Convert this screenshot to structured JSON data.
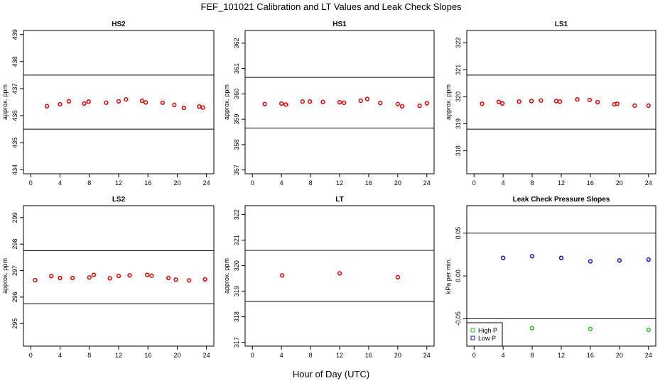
{
  "figure": {
    "title": "FEF_101021  Calibration and LT Values and Leak Check Slopes",
    "xlabel": "Hour of Day (UTC)"
  },
  "chart_data": [
    {
      "type": "scatter",
      "title": "HS2",
      "ylabel": "approx. ppm",
      "xlim": [
        -1,
        25
      ],
      "ylim": [
        433.85,
        439.15
      ],
      "xticks": [
        "0",
        "4",
        "8",
        "12",
        "16",
        "20",
        "24"
      ],
      "yticks": [
        434,
        435,
        436,
        437,
        438,
        439
      ],
      "ref_lines": [
        435.5,
        437.5
      ],
      "marker_color": "#dd0000",
      "series": [
        {
          "x": [
            2.2,
            4.0,
            5.2,
            7.3,
            7.9,
            10.3,
            12.0,
            13.0,
            15.2,
            15.7,
            18.0,
            19.6,
            20.9,
            23.0,
            23.5
          ],
          "y": [
            436.35,
            436.42,
            436.53,
            436.45,
            436.52,
            436.48,
            436.53,
            436.6,
            436.55,
            436.49,
            436.48,
            436.4,
            436.29,
            436.34,
            436.3
          ]
        }
      ]
    },
    {
      "type": "scatter",
      "title": "HS1",
      "ylabel": "approx. ppm",
      "xlim": [
        -1,
        25
      ],
      "ylim": [
        356.85,
        362.5
      ],
      "xticks": [
        "0",
        "4",
        "8",
        "12",
        "16",
        "20",
        "24"
      ],
      "yticks": [
        357,
        358,
        359,
        360,
        361,
        362
      ],
      "ref_lines": [
        358.65,
        360.65
      ],
      "marker_color": "#dd0000",
      "series": [
        {
          "x": [
            1.7,
            4.0,
            4.6,
            6.9,
            7.9,
            9.7,
            12.0,
            12.6,
            14.9,
            15.8,
            17.6,
            20.0,
            20.6,
            23.0,
            24.0
          ],
          "y": [
            359.6,
            359.62,
            359.58,
            359.7,
            359.7,
            359.68,
            359.67,
            359.65,
            359.73,
            359.8,
            359.64,
            359.6,
            359.51,
            359.53,
            359.63
          ]
        }
      ]
    },
    {
      "type": "scatter",
      "title": "LS1",
      "ylabel": "approx. ppm",
      "xlim": [
        -1,
        25
      ],
      "ylim": [
        317.15,
        322.45
      ],
      "xticks": [
        "0",
        "4",
        "8",
        "12",
        "16",
        "20",
        "24"
      ],
      "yticks": [
        318,
        319,
        320,
        321,
        322
      ],
      "ref_lines": [
        318.8,
        320.8
      ],
      "marker_color": "#dd0000",
      "series": [
        {
          "x": [
            1.1,
            3.4,
            3.9,
            6.2,
            7.9,
            9.2,
            11.3,
            11.8,
            14.2,
            15.9,
            17.0,
            19.3,
            19.7,
            22.1,
            24.0
          ],
          "y": [
            319.74,
            319.81,
            319.75,
            319.82,
            319.84,
            319.86,
            319.84,
            319.82,
            319.9,
            319.88,
            319.8,
            319.72,
            319.74,
            319.67,
            319.67
          ]
        }
      ]
    },
    {
      "type": "scatter",
      "title": "LS2",
      "ylabel": "approx. ppm",
      "xlim": [
        -1,
        25
      ],
      "ylim": [
        294.15,
        299.45
      ],
      "xticks": [
        "0",
        "4",
        "8",
        "12",
        "16",
        "20",
        "24"
      ],
      "yticks": [
        295,
        296,
        297,
        298,
        299
      ],
      "ref_lines": [
        295.75,
        297.75
      ],
      "marker_color": "#dd0000",
      "series": [
        {
          "x": [
            0.6,
            2.8,
            4.0,
            5.7,
            8.0,
            8.6,
            10.8,
            12.0,
            13.5,
            15.9,
            16.5,
            18.8,
            19.8,
            21.6,
            23.8
          ],
          "y": [
            296.64,
            296.79,
            296.72,
            296.72,
            296.74,
            296.84,
            296.71,
            296.8,
            296.82,
            296.84,
            296.81,
            296.72,
            296.66,
            296.63,
            296.67
          ]
        }
      ]
    },
    {
      "type": "scatter",
      "title": "LT",
      "ylabel": "approx. ppm",
      "xlim": [
        -1,
        25
      ],
      "ylim": [
        316.85,
        322.35
      ],
      "xticks": [
        "0",
        "4",
        "8",
        "12",
        "16",
        "20",
        "24"
      ],
      "yticks": [
        317,
        318,
        319,
        320,
        321,
        322
      ],
      "ref_lines": [
        318.6,
        320.6
      ],
      "marker_color": "#dd0000",
      "series": [
        {
          "x": [
            4.1,
            12.0,
            20.0
          ],
          "y": [
            319.62,
            319.7,
            319.55
          ]
        }
      ]
    },
    {
      "type": "scatter",
      "title": "Leak Check Pressure Slopes",
      "ylabel": "kPa per min.",
      "xlim": [
        -1,
        25
      ],
      "ylim": [
        -0.082,
        0.082
      ],
      "xticks": [
        "0",
        "4",
        "8",
        "12",
        "16",
        "20",
        "24"
      ],
      "yticks": [
        -0.05,
        0.0,
        0.05
      ],
      "ytick_labels": [
        "-0.05",
        "0.00",
        "0.05"
      ],
      "ref_lines": [
        -0.05,
        0.05
      ],
      "legend": {
        "position": "bottom-left",
        "entries": [
          "High P",
          "Low P"
        ]
      },
      "series": [
        {
          "name": "High P",
          "color": "#22bb22",
          "x": [
            8,
            16,
            24
          ],
          "y": [
            -0.061,
            -0.062,
            -0.063
          ]
        },
        {
          "name": "Low P",
          "color": "#1111cc",
          "x": [
            4,
            8,
            12,
            16,
            20,
            24
          ],
          "y": [
            0.021,
            0.023,
            0.021,
            0.017,
            0.018,
            0.019
          ]
        }
      ]
    }
  ]
}
